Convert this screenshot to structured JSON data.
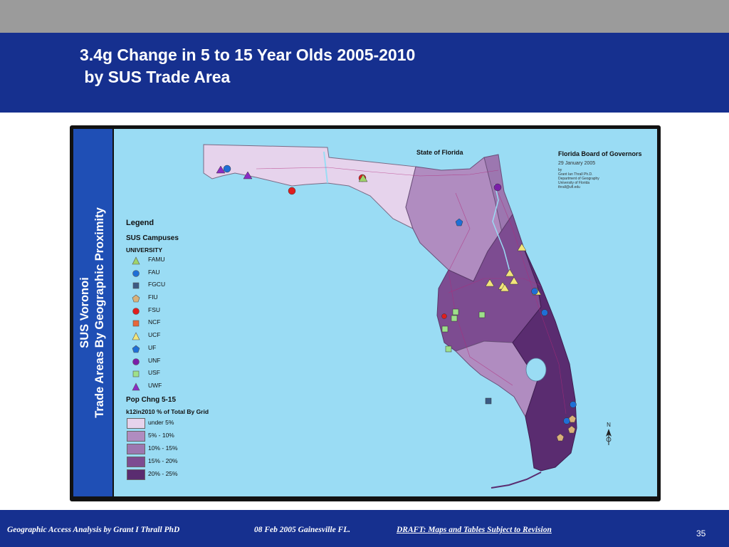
{
  "slide": {
    "title": "3.4g Change in 5 to 15 Year Olds 2005-2010\n by SUS Trade Area",
    "side_label_line1": "SUS Voronoi",
    "side_label_line2": "Trade Areas By Geographic Proximity",
    "page_number": "35"
  },
  "map": {
    "state_label": "State of Florida",
    "board_title": "Florida Board of Governors",
    "board_date": "29 January 2005",
    "credits": [
      "by",
      "Grant Ian Thrall Ph.D.",
      "Department of Geography",
      "University of Florida",
      "thrall@ufl.edu"
    ],
    "north_letter": "N",
    "colors": {
      "water": "#9adcf4",
      "class_under_5": "#e6d3ec",
      "class_5_10": "#b08cc0",
      "class_10_15": "#9c77b0",
      "class_15_20": "#7d4c91",
      "class_20_25": "#5a2c70"
    }
  },
  "legend": {
    "title": "Legend",
    "campus_heading": "SUS Campuses",
    "campus_subheading": "UNIVERSITY",
    "campuses": [
      {
        "label": "FAMU",
        "shape": "triangle",
        "color": "#9fd36b"
      },
      {
        "label": "FAU",
        "shape": "circle",
        "color": "#1f6fd6"
      },
      {
        "label": "FGCU",
        "shape": "square",
        "color": "#3c5a84"
      },
      {
        "label": "FIU",
        "shape": "pentagon",
        "color": "#d9b17a"
      },
      {
        "label": "FSU",
        "shape": "circle",
        "color": "#e01e1e"
      },
      {
        "label": "NCF",
        "shape": "square",
        "color": "#e8663a"
      },
      {
        "label": "UCF",
        "shape": "triangle",
        "color": "#f2e57a"
      },
      {
        "label": "UF",
        "shape": "pentagon",
        "color": "#1f6fd6"
      },
      {
        "label": "UNF",
        "shape": "circle",
        "color": "#7a1fa8"
      },
      {
        "label": "USF",
        "shape": "square",
        "color": "#9ee08a"
      },
      {
        "label": "UWF",
        "shape": "triangle",
        "color": "#8a2bc4"
      }
    ],
    "pop_heading": "Pop Chng 5-15",
    "pop_subheading": "k12in2010 % of Total By Grid",
    "classes": [
      {
        "label": "under 5%",
        "color": "#e6d3ec"
      },
      {
        "label": "5% - 10%",
        "color": "#b08cc0"
      },
      {
        "label": "10% - 15%",
        "color": "#9c77b0"
      },
      {
        "label": "15% - 20%",
        "color": "#7d4c91"
      },
      {
        "label": "20% - 25%",
        "color": "#5a2c70"
      }
    ]
  },
  "footer": {
    "left": "Geographic Access Analysis by Grant I Thrall PhD",
    "middle": "08 Feb 2005  Gainesville FL.",
    "draft": "DRAFT:  Maps and Tables Subject to Revision"
  }
}
